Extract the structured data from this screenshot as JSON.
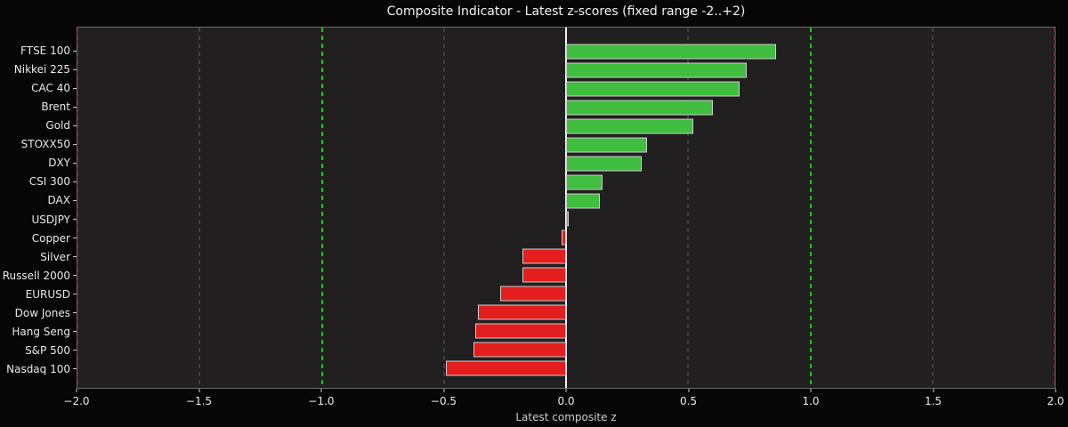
{
  "colors": {
    "figure_bg": "#060606",
    "plot_bg": "#211f1f",
    "spine": "#6e6e6e",
    "axis_text": "#e9e9e9",
    "xlabel_text": "#cccccc",
    "tick_mark": "#c9c9c9",
    "bar_edge": "#cccccc"
  },
  "chart_data": {
    "type": "bar",
    "orientation": "horizontal",
    "title": "Composite Indicator - Latest z-scores (fixed range -2..+2)",
    "xlabel": "Latest composite z",
    "xlim": [
      -2.0,
      2.0
    ],
    "grid": true,
    "legend_position": "none",
    "categories": [
      "FTSE 100",
      "Nikkei 225",
      "CAC 40",
      "Brent",
      "Gold",
      "STOXX50",
      "DXY",
      "CSI 300",
      "DAX",
      "USDJPY",
      "Copper",
      "Silver",
      "Russell 2000",
      "EURUSD",
      "Dow Jones",
      "Hang Seng",
      "S&P 500",
      "Nasdaq 100"
    ],
    "values": [
      0.86,
      0.74,
      0.71,
      0.6,
      0.52,
      0.33,
      0.31,
      0.15,
      0.14,
      0.01,
      -0.02,
      -0.18,
      -0.18,
      -0.27,
      -0.36,
      -0.37,
      -0.38,
      -0.49
    ],
    "positive_color": "#3fbe3f",
    "negative_color": "#e41e1e",
    "x_ticks": {
      "values": [
        -2.0,
        -1.5,
        -1.0,
        -0.5,
        0.0,
        0.5,
        1.0,
        1.5,
        2.0
      ],
      "labels": [
        "−2.0",
        "−1.5",
        "−1.0",
        "−0.5",
        "0.0",
        "0.5",
        "1.0",
        "1.5",
        "2.0"
      ]
    },
    "reference_lines": [
      {
        "name": "lower-limit-line",
        "value": -2.0,
        "style": "dashed",
        "color": "#9c3838",
        "width": 1
      },
      {
        "name": "grid-line",
        "value": -1.5,
        "style": "dashed",
        "color": "#585858",
        "width": 1
      },
      {
        "name": "lower-band-line",
        "value": -1.0,
        "style": "dashed",
        "color": "#17c617",
        "width": 2
      },
      {
        "name": "grid-line",
        "value": -0.5,
        "style": "dashed",
        "color": "#585858",
        "width": 1
      },
      {
        "name": "zero-line",
        "value": 0.0,
        "style": "solid",
        "color": "#f2f2f2",
        "width": 2
      },
      {
        "name": "grid-line",
        "value": 0.5,
        "style": "dashed",
        "color": "#585858",
        "width": 1
      },
      {
        "name": "upper-band-line",
        "value": 1.0,
        "style": "dashed",
        "color": "#17c617",
        "width": 2
      },
      {
        "name": "grid-line",
        "value": 1.5,
        "style": "dashed",
        "color": "#585858",
        "width": 1
      },
      {
        "name": "upper-limit-line",
        "value": 2.0,
        "style": "dashed",
        "color": "#9c3838",
        "width": 1
      }
    ]
  }
}
